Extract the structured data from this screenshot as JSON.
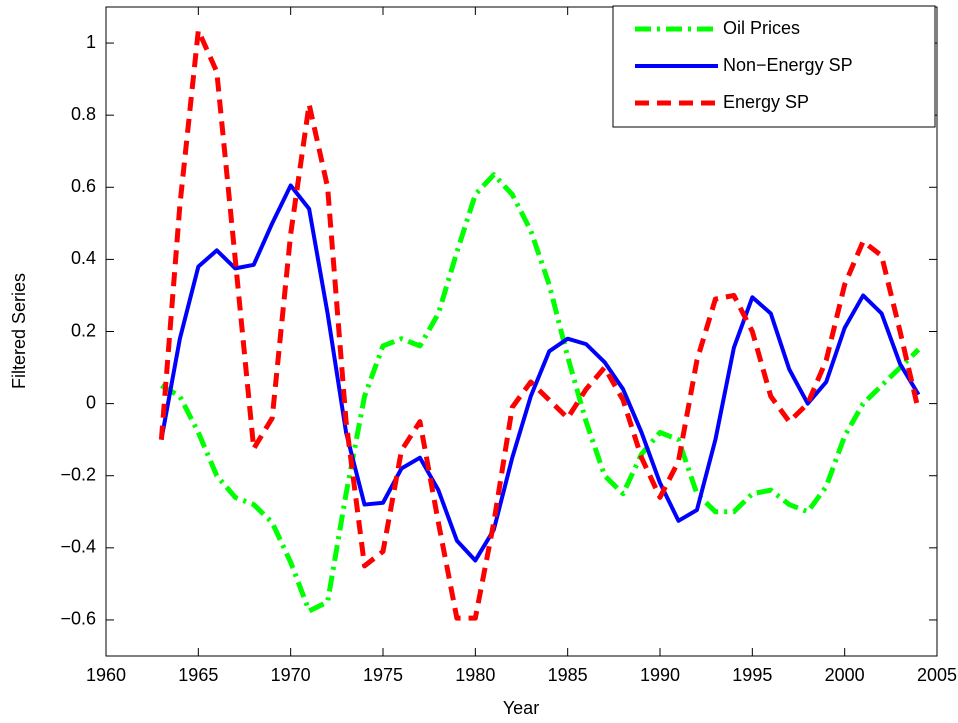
{
  "chart_data": {
    "type": "line",
    "xlabel": "Year",
    "ylabel": "Filtered Series",
    "x": [
      1963,
      1964,
      1965,
      1966,
      1967,
      1968,
      1969,
      1970,
      1971,
      1972,
      1973,
      1974,
      1975,
      1976,
      1977,
      1978,
      1979,
      1980,
      1981,
      1982,
      1983,
      1984,
      1985,
      1986,
      1987,
      1988,
      1989,
      1990,
      1991,
      1992,
      1993,
      1994,
      1995,
      1996,
      1997,
      1998,
      1999,
      2000,
      2001,
      2002,
      2003,
      2004
    ],
    "series": [
      {
        "name": "Oil Prices",
        "color": "#00ff00",
        "style": "dashdot",
        "values": [
          0.05,
          0.02,
          -0.08,
          -0.2,
          -0.26,
          -0.28,
          -0.33,
          -0.44,
          -0.575,
          -0.55,
          -0.25,
          0.02,
          0.16,
          0.18,
          0.16,
          0.25,
          0.42,
          0.58,
          0.635,
          0.58,
          0.48,
          0.33,
          0.13,
          -0.05,
          -0.2,
          -0.25,
          -0.14,
          -0.08,
          -0.1,
          -0.25,
          -0.3,
          -0.3,
          -0.25,
          -0.24,
          -0.28,
          -0.3,
          -0.23,
          -0.09,
          0.0,
          0.05,
          0.1,
          0.15
        ]
      },
      {
        "name": "Non−Energy SP",
        "color": "#0000ff",
        "style": "solid",
        "values": [
          -0.1,
          0.18,
          0.38,
          0.425,
          0.375,
          0.385,
          0.5,
          0.605,
          0.54,
          0.25,
          -0.08,
          -0.28,
          -0.275,
          -0.18,
          -0.15,
          -0.24,
          -0.38,
          -0.435,
          -0.35,
          -0.15,
          0.02,
          0.145,
          0.18,
          0.165,
          0.115,
          0.04,
          -0.08,
          -0.22,
          -0.325,
          -0.295,
          -0.1,
          0.155,
          0.295,
          0.25,
          0.095,
          0.0,
          0.06,
          0.21,
          0.3,
          0.25,
          0.11,
          0.025
        ]
      },
      {
        "name": "Energy SP",
        "color": "#ff0000",
        "style": "dashed",
        "values": [
          -0.1,
          0.55,
          1.035,
          0.92,
          0.4,
          -0.125,
          -0.04,
          0.47,
          0.83,
          0.6,
          -0.05,
          -0.45,
          -0.41,
          -0.13,
          -0.05,
          -0.33,
          -0.595,
          -0.595,
          -0.33,
          -0.01,
          0.06,
          0.01,
          -0.04,
          0.04,
          0.1,
          0.01,
          -0.15,
          -0.26,
          -0.16,
          0.12,
          0.29,
          0.3,
          0.2,
          0.02,
          -0.05,
          0.0,
          0.12,
          0.33,
          0.45,
          0.41,
          0.2,
          -0.02
        ]
      }
    ],
    "xlim": [
      1960,
      2005
    ],
    "xticks": [
      1960,
      1965,
      1970,
      1975,
      1980,
      1985,
      1990,
      1995,
      2000,
      2005
    ],
    "ylim": [
      -0.7,
      1.1
    ],
    "yticks": [
      {
        "value": -0.6,
        "label": "−0.6"
      },
      {
        "value": -0.4,
        "label": "−0.4"
      },
      {
        "value": -0.2,
        "label": "−0.2"
      },
      0,
      0.2,
      0.4,
      0.6,
      0.8,
      1
    ],
    "legend": "northeast",
    "grid": false
  }
}
